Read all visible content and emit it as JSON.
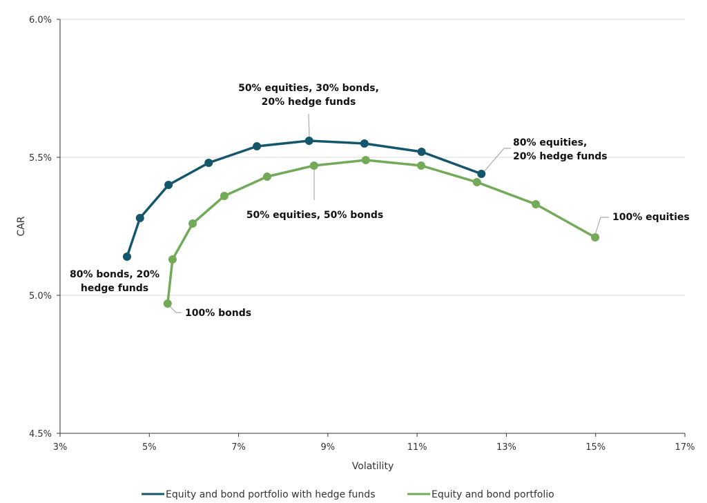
{
  "chart_data": {
    "type": "line",
    "title": "",
    "xlabel": "Volatility",
    "ylabel": "CAR",
    "xlim": [
      3,
      17
    ],
    "ylim": [
      4.5,
      6.0
    ],
    "xticks": [
      "3%",
      "5%",
      "7%",
      "9%",
      "11%",
      "13%",
      "15%",
      "17%"
    ],
    "xtick_values": [
      3,
      5,
      7,
      9,
      11,
      13,
      15,
      17
    ],
    "yticks": [
      "4.5%",
      "5.0%",
      "5.5%",
      "6.0%"
    ],
    "ytick_values": [
      4.5,
      5.0,
      5.5,
      6.0
    ],
    "grid": "horizontal",
    "legend_position": "bottom",
    "series": [
      {
        "name": "Equity and bond portfolio with hedge funds",
        "color": "#14566b",
        "x": [
          4.5,
          4.79,
          5.43,
          6.33,
          7.41,
          8.58,
          9.82,
          11.1,
          12.44
        ],
        "y": [
          5.14,
          5.28,
          5.4,
          5.48,
          5.54,
          5.56,
          5.55,
          5.52,
          5.44
        ]
      },
      {
        "name": "Equity and bond portfolio",
        "color": "#72aa5a",
        "x": [
          5.41,
          5.52,
          5.97,
          6.68,
          7.64,
          8.69,
          9.85,
          11.09,
          12.34,
          13.66,
          14.99
        ],
        "y": [
          4.97,
          5.13,
          5.26,
          5.36,
          5.43,
          5.47,
          5.49,
          5.47,
          5.41,
          5.33,
          5.21
        ]
      }
    ],
    "annotations": [
      {
        "lines": [
          "50% equities, 30% bonds,",
          "20% hedge funds"
        ]
      },
      {
        "lines": [
          "80% equities,",
          "20% hedge funds"
        ]
      },
      {
        "lines": [
          "50% equities, 50% bonds"
        ]
      },
      {
        "lines": [
          "100% equities"
        ]
      },
      {
        "lines": [
          "80% bonds, 20%",
          "hedge funds"
        ]
      },
      {
        "lines": [
          "100% bonds"
        ]
      }
    ]
  }
}
